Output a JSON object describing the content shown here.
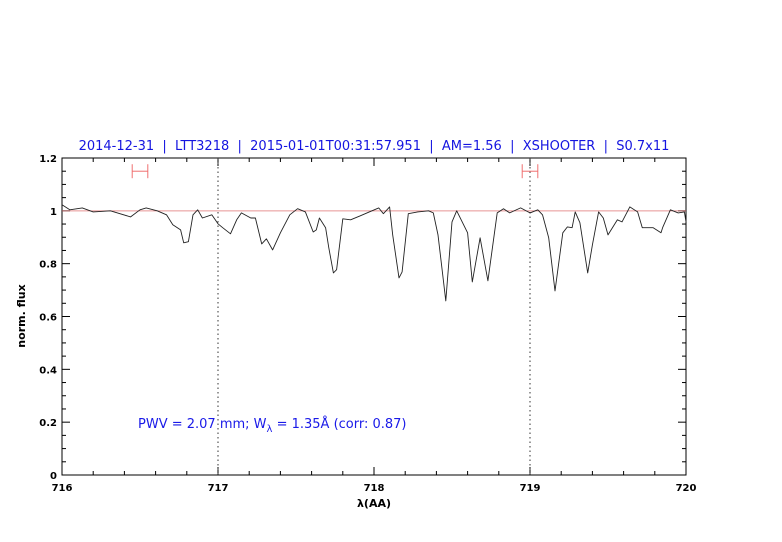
{
  "chart_data": {
    "type": "line",
    "title": "2014-12-31  |  LTT3218  |  2015-01-01T00:31:57.951  |  AM=1.56  |  XSHOOTER  |  S0.7x11",
    "xlabel": "λ(AA)",
    "ylabel": "norm. flux",
    "xlim": [
      716,
      720
    ],
    "ylim": [
      0,
      1.2
    ],
    "xticks": [
      "716",
      "717",
      "718",
      "719",
      "720"
    ],
    "yticks": [
      "0",
      "0.2",
      "0.4",
      "0.6",
      "0.8",
      "1",
      "1.2"
    ],
    "grid": false,
    "reference_line": {
      "y": 1.0,
      "color": "#e07a7a"
    },
    "dotted_vlines": [
      717,
      719
    ],
    "error_bars": [
      {
        "x_range": [
          716.45,
          716.55
        ],
        "y": 1.15
      },
      {
        "x_range": [
          718.95,
          719.05
        ],
        "y": 1.15
      }
    ],
    "annotation": {
      "part1": "PWV = 2.07 mm; W",
      "sub": "λ",
      "part2": " = 1.35Å (corr: 0.87)"
    },
    "series": [
      {
        "color": "#222222",
        "x": [
          716.0,
          716.05,
          716.13,
          716.2,
          716.31,
          716.44,
          716.5,
          716.54,
          716.61,
          716.67,
          716.71,
          716.76,
          716.78,
          716.81,
          716.84,
          716.87,
          716.9,
          716.96,
          717.0,
          717.03,
          717.08,
          717.12,
          717.15,
          717.21,
          717.24,
          717.28,
          717.31,
          717.35,
          717.4,
          717.46,
          717.51,
          717.56,
          717.61,
          717.63,
          717.65,
          717.69,
          717.71,
          717.74,
          717.76,
          717.8,
          717.85,
          717.91,
          717.97,
          718.03,
          718.06,
          718.1,
          718.12,
          718.16,
          718.18,
          718.22,
          718.28,
          718.35,
          718.38,
          718.41,
          718.46,
          718.5,
          718.53,
          718.6,
          718.63,
          718.68,
          718.73,
          718.79,
          718.83,
          718.87,
          718.94,
          719.0,
          719.05,
          719.08,
          719.12,
          719.16,
          719.21,
          719.24,
          719.27,
          719.29,
          719.32,
          719.37,
          719.4,
          719.44,
          719.47,
          719.5,
          719.56,
          719.59,
          719.64,
          719.69,
          719.72,
          719.79,
          719.84,
          719.85,
          719.9,
          719.95,
          719.99,
          720.0
        ],
        "y": [
          1.023,
          1.004,
          1.011,
          0.996,
          1.0,
          0.977,
          1.004,
          1.011,
          1.0,
          0.985,
          0.947,
          0.928,
          0.879,
          0.883,
          0.985,
          1.004,
          0.973,
          0.985,
          0.951,
          0.936,
          0.913,
          0.966,
          0.992,
          0.973,
          0.973,
          0.875,
          0.894,
          0.852,
          0.917,
          0.985,
          1.008,
          0.996,
          0.92,
          0.928,
          0.973,
          0.936,
          0.86,
          0.765,
          0.777,
          0.97,
          0.966,
          0.981,
          0.996,
          1.011,
          0.989,
          1.015,
          0.909,
          0.746,
          0.769,
          0.989,
          0.996,
          1.0,
          0.992,
          0.909,
          0.659,
          0.958,
          1.0,
          0.917,
          0.731,
          0.898,
          0.735,
          0.992,
          1.008,
          0.992,
          1.011,
          0.992,
          1.004,
          0.985,
          0.898,
          0.697,
          0.917,
          0.939,
          0.936,
          0.996,
          0.955,
          0.765,
          0.871,
          0.996,
          0.973,
          0.909,
          0.966,
          0.958,
          1.015,
          0.996,
          0.936,
          0.936,
          0.917,
          0.936,
          1.004,
          0.992,
          0.996,
          0.958
        ]
      }
    ]
  }
}
